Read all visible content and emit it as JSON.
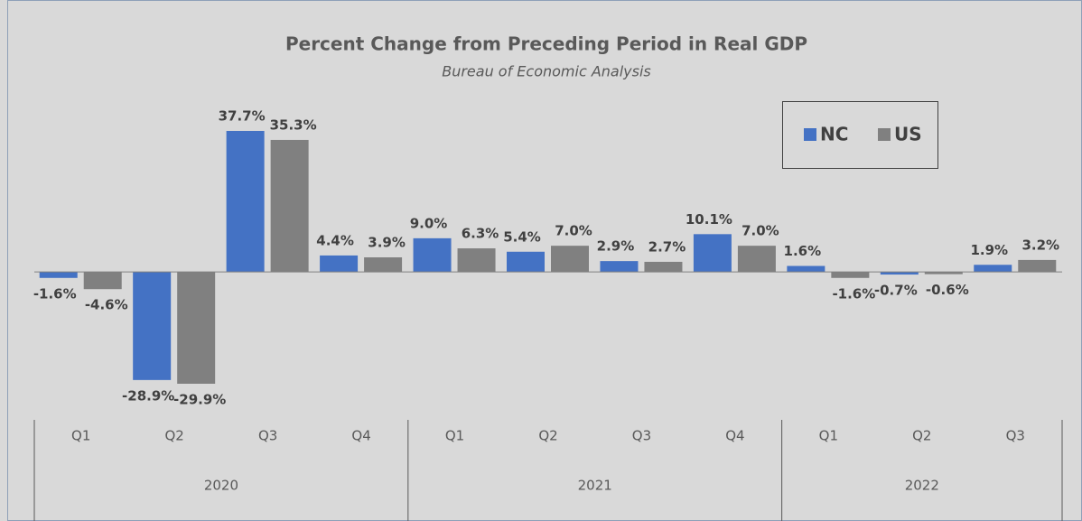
{
  "chart_data": {
    "type": "bar",
    "title": "Percent Change from Preceding Period in Real GDP",
    "subtitle": "Bureau of Economic Analysis",
    "groups": [
      {
        "name": "2020",
        "categories": [
          "Q1",
          "Q2",
          "Q3",
          "Q4"
        ]
      },
      {
        "name": "2021",
        "categories": [
          "Q1",
          "Q2",
          "Q3",
          "Q4"
        ]
      },
      {
        "name": "2022",
        "categories": [
          "Q1",
          "Q2",
          "Q3"
        ]
      }
    ],
    "series": [
      {
        "name": "NC",
        "color": "#4472c4",
        "values": [
          -1.6,
          -28.9,
          37.7,
          4.4,
          9.0,
          5.4,
          2.9,
          10.1,
          1.6,
          -0.7,
          1.9
        ],
        "value_labels": [
          "-1.6%",
          "-28.9%",
          "37.7%",
          "4.4%",
          "9.0%",
          "5.4%",
          "2.9%",
          "10.1%",
          "1.6%",
          "-0.7%",
          "1.9%"
        ]
      },
      {
        "name": "US",
        "color": "#808080",
        "values": [
          -4.6,
          -29.9,
          35.3,
          3.9,
          6.3,
          7.0,
          2.7,
          7.0,
          -1.6,
          -0.6,
          3.2
        ],
        "value_labels": [
          "-4.6%",
          "-29.9%",
          "35.3%",
          "3.9%",
          "6.3%",
          "7.0%",
          "2.7%",
          "7.0%",
          "-1.6%",
          "-0.6%",
          "3.2%"
        ]
      }
    ],
    "legend": "top-right"
  }
}
